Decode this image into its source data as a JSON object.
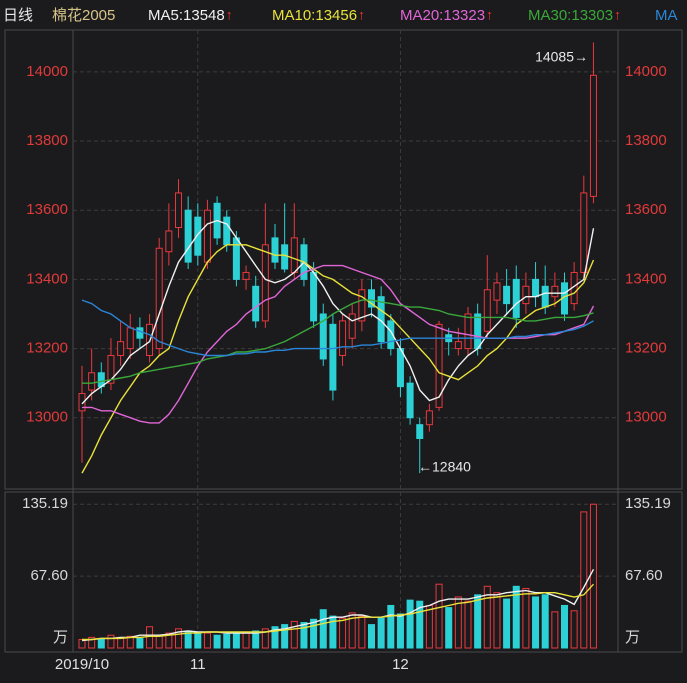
{
  "chart_data": {
    "type": "candlestick",
    "header": {
      "period": "日线",
      "symbol": "棉花2005",
      "trend_arrow": "↑"
    },
    "categories": [
      "2019/10",
      null,
      null,
      null,
      null,
      null,
      null,
      null,
      null,
      null,
      null,
      null,
      "11",
      null,
      null,
      null,
      null,
      null,
      null,
      null,
      null,
      null,
      null,
      null,
      null,
      null,
      null,
      null,
      null,
      null,
      null,
      null,
      null,
      "12",
      null,
      null,
      null,
      null,
      null,
      null,
      null,
      null,
      null,
      null,
      null,
      null,
      null,
      null,
      null,
      null,
      null,
      null,
      null,
      null
    ],
    "open": [
      13020,
      13080,
      13130,
      13100,
      13180,
      13200,
      13260,
      13180,
      13200,
      13480,
      13550,
      13600,
      13580,
      13450,
      13620,
      13580,
      13520,
      13400,
      13380,
      13280,
      13520,
      13500,
      13420,
      13500,
      13420,
      13300,
      13270,
      13180,
      13230,
      13280,
      13370,
      13350,
      13280,
      13200,
      13100,
      12980,
      12980,
      13030,
      13240,
      13200,
      13200,
      13300,
      13250,
      13340,
      13380,
      13400,
      13330,
      13400,
      13380,
      13350,
      13390,
      13330,
      13420,
      13640
    ],
    "high": [
      13150,
      13200,
      13160,
      13230,
      13280,
      13300,
      13290,
      13300,
      13520,
      13620,
      13690,
      13640,
      13620,
      13630,
      13640,
      13600,
      13540,
      13440,
      13410,
      13620,
      13560,
      13620,
      13620,
      13520,
      13450,
      13330,
      13300,
      13300,
      13330,
      13400,
      13400,
      13380,
      13300,
      13230,
      13120,
      13000,
      13040,
      13280,
      13260,
      13260,
      13320,
      13330,
      13470,
      13420,
      13430,
      13440,
      13420,
      13450,
      13440,
      13420,
      13420,
      13450,
      13700,
      14085
    ],
    "low": [
      12870,
      13050,
      13070,
      13080,
      13150,
      13170,
      13200,
      13160,
      13180,
      13440,
      13520,
      13430,
      13440,
      13430,
      13500,
      13480,
      13380,
      13370,
      13260,
      13260,
      13430,
      13420,
      13400,
      13380,
      13260,
      13150,
      13050,
      13150,
      13200,
      13250,
      13290,
      13200,
      13180,
      13060,
      12980,
      12840,
      12960,
      13020,
      13180,
      13180,
      13180,
      13180,
      13230,
      13300,
      13300,
      13260,
      13300,
      13320,
      13300,
      13320,
      13280,
      13310,
      13400,
      13620
    ],
    "close": [
      13070,
      13130,
      13090,
      13180,
      13220,
      13260,
      13230,
      13270,
      13490,
      13540,
      13650,
      13450,
      13470,
      13600,
      13520,
      13500,
      13400,
      13420,
      13280,
      13500,
      13450,
      13430,
      13520,
      13400,
      13280,
      13170,
      13080,
      13280,
      13300,
      13370,
      13320,
      13220,
      13200,
      13090,
      13000,
      12940,
      13020,
      13270,
      13220,
      13220,
      13300,
      13200,
      13370,
      13390,
      13330,
      13290,
      13380,
      13350,
      13320,
      13380,
      13300,
      13420,
      13650,
      13990
    ],
    "up_color": "#e8383d",
    "down_color": "#2cd1d6",
    "ylim": [
      12794,
      14121
    ],
    "yticks": [
      13000,
      13200,
      13400,
      13600,
      13800,
      14000
    ],
    "annotations": [
      "14085→",
      "←12840"
    ],
    "series": [
      {
        "name": "MA5:13548",
        "color": "#f0f0f0",
        "values": [
          13040,
          13070,
          13090,
          13110,
          13140,
          13180,
          13200,
          13220,
          13300,
          13380,
          13450,
          13490,
          13530,
          13560,
          13570,
          13560,
          13520,
          13480,
          13440,
          13400,
          13390,
          13400,
          13420,
          13450,
          13420,
          13380,
          13330,
          13300,
          13280,
          13290,
          13300,
          13280,
          13250,
          13200,
          13150,
          13080,
          13050,
          13060,
          13110,
          13150,
          13180,
          13200,
          13240,
          13270,
          13300,
          13330,
          13350,
          13350,
          13360,
          13360,
          13360,
          13380,
          13400,
          13548
        ]
      },
      {
        "name": "MA10:13456",
        "color": "#e8e23a",
        "values": [
          12840,
          12890,
          12950,
          13000,
          13050,
          13090,
          13130,
          13150,
          13180,
          13200,
          13280,
          13350,
          13400,
          13450,
          13480,
          13500,
          13500,
          13500,
          13490,
          13480,
          13470,
          13470,
          13460,
          13450,
          13430,
          13410,
          13400,
          13380,
          13360,
          13350,
          13330,
          13310,
          13290,
          13260,
          13230,
          13200,
          13170,
          13130,
          13120,
          13110,
          13130,
          13150,
          13180,
          13200,
          13230,
          13270,
          13290,
          13310,
          13320,
          13330,
          13350,
          13360,
          13390,
          13456
        ]
      },
      {
        "name": "MA20:13323",
        "color": "#e066d8",
        "values": [
          13030,
          13030,
          13020,
          13020,
          13010,
          13000,
          12990,
          12985,
          12985,
          13010,
          13050,
          13100,
          13150,
          13190,
          13220,
          13250,
          13270,
          13300,
          13320,
          13340,
          13350,
          13380,
          13400,
          13420,
          13430,
          13440,
          13440,
          13440,
          13430,
          13420,
          13410,
          13400,
          13370,
          13330,
          13310,
          13290,
          13270,
          13260,
          13250,
          13245,
          13240,
          13235,
          13230,
          13230,
          13230,
          13230,
          13230,
          13235,
          13240,
          13240,
          13250,
          13260,
          13270,
          13323
        ]
      },
      {
        "name": "MA30:13303",
        "color": "#3aa83a",
        "values": [
          13100,
          13100,
          13105,
          13110,
          13115,
          13120,
          13130,
          13135,
          13140,
          13145,
          13150,
          13155,
          13160,
          13170,
          13175,
          13180,
          13190,
          13190,
          13195,
          13200,
          13210,
          13220,
          13235,
          13250,
          13265,
          13280,
          13300,
          13315,
          13330,
          13340,
          13340,
          13335,
          13330,
          13325,
          13320,
          13320,
          13315,
          13310,
          13300,
          13295,
          13290,
          13290,
          13290,
          13290,
          13290,
          13285,
          13280,
          13280,
          13285,
          13290,
          13290,
          13290,
          13295,
          13303
        ]
      },
      {
        "name": "MA",
        "color": "#2a86d8",
        "values": [
          13340,
          13330,
          13310,
          13300,
          13280,
          13260,
          13250,
          13240,
          13220,
          13210,
          13200,
          13190,
          13185,
          13180,
          13180,
          13180,
          13185,
          13185,
          13190,
          13190,
          13195,
          13195,
          13200,
          13200,
          13200,
          13200,
          13200,
          13205,
          13205,
          13210,
          13210,
          13215,
          13220,
          13225,
          13230,
          13230,
          13230,
          13230,
          13230,
          13230,
          13230,
          13230,
          13230,
          13230,
          13230,
          13235,
          13235,
          13240,
          13240,
          13245,
          13250,
          13255,
          13265,
          13280
        ]
      }
    ],
    "volume": {
      "values": [
        8,
        10,
        9,
        12,
        10,
        11,
        9,
        20,
        12,
        14,
        18,
        16,
        15,
        14,
        12,
        13,
        15,
        14,
        16,
        18,
        20,
        22,
        25,
        24,
        27,
        36,
        30,
        28,
        33,
        30,
        22,
        28,
        40,
        32,
        45,
        44,
        40,
        60,
        38,
        48,
        44,
        50,
        58,
        52,
        46,
        58,
        56,
        48,
        50,
        34,
        40,
        35,
        128,
        135.19
      ],
      "ylim": [
        0,
        146.7
      ],
      "yticks": [
        {
          "value": 0,
          "label": "万"
        },
        {
          "value": 67.6,
          "label": "67.60"
        },
        135.19
      ],
      "lines": [
        {
          "color": "#f0f0f0",
          "values": [
            7,
            8,
            9,
            9,
            10,
            10,
            12,
            12,
            12,
            13,
            15,
            16,
            15,
            15,
            15,
            14,
            14,
            14,
            14,
            15,
            17,
            18,
            20,
            22,
            24,
            27,
            29,
            29,
            31,
            31,
            29,
            29,
            31,
            30,
            33,
            38,
            40,
            44,
            46,
            46,
            46,
            48,
            50,
            50,
            52,
            53,
            54,
            52,
            52,
            49,
            46,
            41,
            57,
            74
          ]
        },
        {
          "color": "#e8e23a",
          "values": [
            8,
            8,
            9,
            9,
            9,
            10,
            10,
            11,
            11,
            12,
            13,
            14,
            14,
            15,
            15,
            15,
            15,
            15,
            15,
            15,
            16,
            17,
            18,
            19,
            21,
            23,
            25,
            26,
            28,
            29,
            29,
            29,
            30,
            31,
            32,
            34,
            36,
            38,
            40,
            42,
            43,
            45,
            47,
            48,
            49,
            50,
            51,
            51,
            52,
            52,
            50,
            48,
            50,
            60
          ]
        }
      ]
    }
  }
}
